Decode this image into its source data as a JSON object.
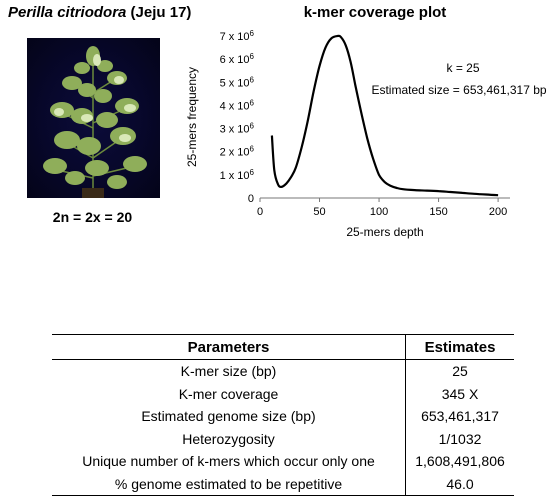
{
  "header": {
    "species": "Perilla citriodora",
    "accession": "(Jeju 17)",
    "chromosome": "2n = 2x = 20"
  },
  "photo": {
    "name": "Perilla citriodora plant photograph"
  },
  "chart_data": {
    "type": "line",
    "title": "k-mer coverage plot",
    "xlabel": "25-mers depth",
    "ylabel": "25-mers frequency",
    "xlim": [
      0,
      210
    ],
    "ylim": [
      0,
      7000000
    ],
    "x_ticks": [
      0,
      50,
      100,
      150,
      200
    ],
    "x_tick_labels": [
      "0",
      "50",
      "100",
      "150",
      "200"
    ],
    "y_ticks": [
      0,
      1000000,
      2000000,
      3000000,
      4000000,
      5000000,
      6000000,
      7000000
    ],
    "y_tick_labels": [
      {
        "base": "0",
        "exp": ""
      },
      {
        "base": "1 x 10",
        "exp": "6"
      },
      {
        "base": "2 x 10",
        "exp": "6"
      },
      {
        "base": "3 x 10",
        "exp": "6"
      },
      {
        "base": "4 x 10",
        "exp": "6"
      },
      {
        "base": "5 x 10",
        "exp": "6"
      },
      {
        "base": "6 x 10",
        "exp": "6"
      },
      {
        "base": "7 x 10",
        "exp": "6"
      }
    ],
    "grid": false,
    "annotations": [
      "k = 25",
      "Estimated size = 653,461,317 bp"
    ],
    "series": [
      {
        "x": [
          10,
          12,
          15,
          18,
          22,
          26,
          30,
          35,
          40,
          45,
          50,
          55,
          60,
          65,
          68,
          72,
          76,
          80,
          85,
          90,
          95,
          100,
          105,
          110,
          115,
          120,
          130,
          140,
          150,
          160,
          170,
          180,
          190,
          200
        ],
        "y": [
          2700000,
          1200000,
          600000,
          480000,
          620000,
          900000,
          1300000,
          2200000,
          3300000,
          4600000,
          5700000,
          6500000,
          6900000,
          7000000,
          6950000,
          6600000,
          5900000,
          4900000,
          3700000,
          2600000,
          1700000,
          1000000,
          680000,
          520000,
          430000,
          380000,
          340000,
          320000,
          300000,
          260000,
          220000,
          180000,
          150000,
          120000
        ]
      }
    ]
  },
  "table": {
    "headers": [
      "Parameters",
      "Estimates"
    ],
    "rows": [
      [
        "K-mer size (bp)",
        "25"
      ],
      [
        "K-mer coverage",
        "345 X"
      ],
      [
        "Estimated genome size (bp)",
        "653,461,317"
      ],
      [
        "Heterozygosity",
        "1/1032"
      ],
      [
        "Unique number of k-mers which occur only one",
        "1,608,491,806"
      ],
      [
        "% genome estimated to be repetitive",
        "46.0"
      ]
    ]
  }
}
